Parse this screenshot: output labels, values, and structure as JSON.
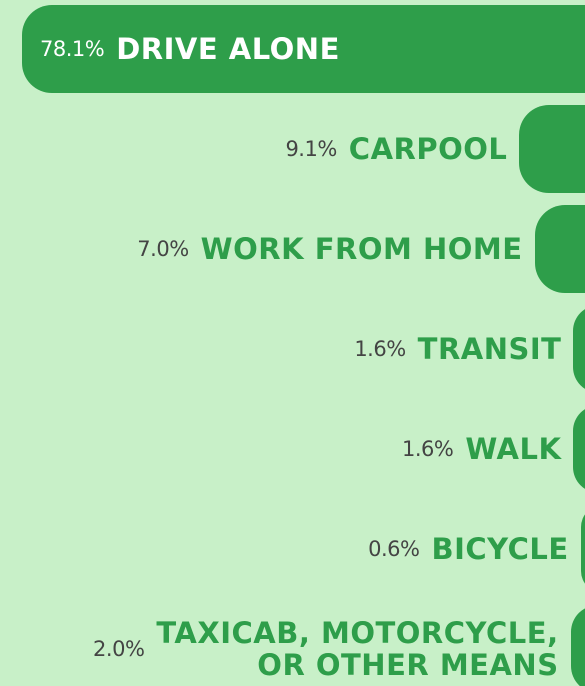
{
  "chart_data": {
    "type": "bar",
    "orientation": "horizontal",
    "categories": [
      "DRIVE ALONE",
      "CARPOOL",
      "WORK FROM HOME",
      "TRANSIT",
      "WALK",
      "BICYCLE",
      "TAXICAB, MOTORCYCLE,\nOR OTHER MEANS"
    ],
    "values": [
      78.1,
      9.1,
      7.0,
      1.6,
      1.6,
      0.6,
      2.0
    ],
    "value_labels": [
      "78.1%",
      "9.1%",
      "7.0%",
      "1.6%",
      "1.6%",
      "0.6%",
      "2.0%"
    ],
    "color": "#2e9e4a"
  }
}
